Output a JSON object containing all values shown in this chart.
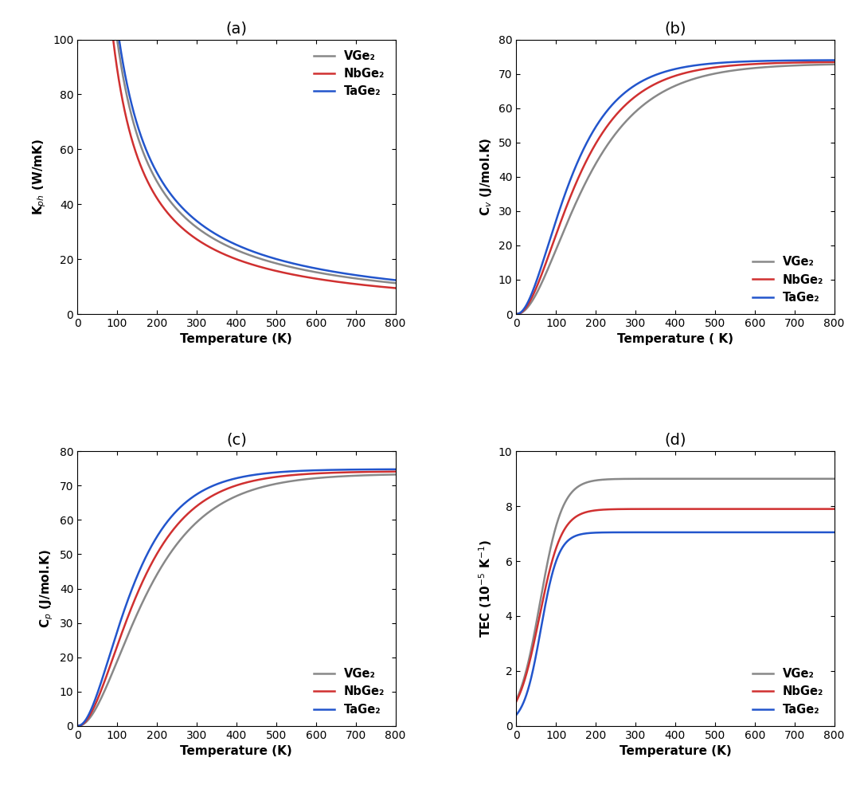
{
  "colors": {
    "VGe2": "#888888",
    "NbGe2": "#d03030",
    "TaGe2": "#2255cc"
  },
  "legend_labels": [
    "VGe₂",
    "NbGe₂",
    "TaGe₂"
  ],
  "panel_labels": [
    "(a)",
    "(b)",
    "(c)",
    "(d)"
  ],
  "a": {
    "xlabel": "Temperature (K)",
    "ylabel": "K$_{ph}$ (W/mK)",
    "xlim": [
      0,
      800
    ],
    "ylim": [
      0,
      100
    ],
    "xticks": [
      0,
      100,
      200,
      300,
      400,
      500,
      600,
      700,
      800
    ],
    "yticks": [
      0,
      20,
      40,
      60,
      80,
      100
    ],
    "legend_loc": "upper right"
  },
  "b": {
    "xlabel": "Temperature ( K)",
    "ylabel": "C$_v$ (J/mol.K)",
    "xlim": [
      0,
      800
    ],
    "ylim": [
      0,
      80
    ],
    "xticks": [
      0,
      100,
      200,
      300,
      400,
      500,
      600,
      700,
      800
    ],
    "yticks": [
      0,
      10,
      20,
      30,
      40,
      50,
      60,
      70,
      80
    ],
    "legend_loc": "lower right"
  },
  "c": {
    "xlabel": "Temperature (K)",
    "ylabel": "C$_p$ (J/mol.K)",
    "xlim": [
      0,
      800
    ],
    "ylim": [
      0,
      80
    ],
    "xticks": [
      0,
      100,
      200,
      300,
      400,
      500,
      600,
      700,
      800
    ],
    "yticks": [
      0,
      10,
      20,
      30,
      40,
      50,
      60,
      70,
      80
    ],
    "legend_loc": "lower right"
  },
  "d": {
    "xlabel": "Temperature (K)",
    "ylabel": "TEC (10$^{-5}$ K$^{-1}$)",
    "xlim": [
      0,
      800
    ],
    "ylim": [
      0,
      10
    ],
    "xticks": [
      0,
      100,
      200,
      300,
      400,
      500,
      600,
      700,
      800
    ],
    "yticks": [
      0,
      2,
      4,
      6,
      8,
      10
    ],
    "legend_loc": "lower right"
  },
  "line_width": 1.8,
  "figure_bg": "#ffffff",
  "axes_bg": "#ffffff"
}
